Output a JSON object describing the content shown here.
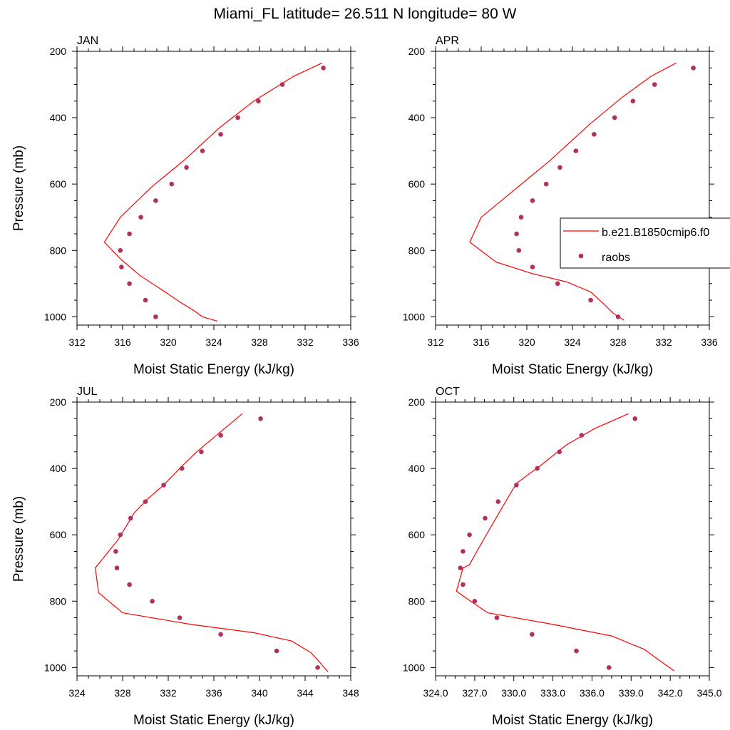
{
  "figure": {
    "title": "Miami_FL  latitude= 26.511 N longitude= 80 W"
  },
  "colors": {
    "model_line": "#ff0000",
    "raobs_marker": "#b03060",
    "axis": "#000000"
  },
  "legend": {
    "model_label": "b.e21.B1850cmip6.f0",
    "obs_label": "raobs",
    "placement": "right of APR panel"
  },
  "chart_data": [
    {
      "type": "line",
      "panel": "JAN",
      "xlabel": "Moist Static Energy (kJ/kg)",
      "ylabel": "Pressure (mb)",
      "xlim": [
        312,
        336
      ],
      "ylim": [
        200,
        1025
      ],
      "y_inverted": true,
      "xticks": [
        "312",
        "316",
        "320",
        "324",
        "328",
        "332",
        "336"
      ],
      "yticks": [
        "200",
        "400",
        "600",
        "800",
        "1000"
      ],
      "series": [
        {
          "name": "b.e21.B1850cmip6.f0",
          "style": "line",
          "x": [
            333.5,
            331.0,
            327.5,
            324.5,
            321.5,
            318.5,
            315.8,
            314.4,
            315.8,
            317.5,
            319.5,
            321.0,
            322.2,
            323.0,
            324.3
          ],
          "y": [
            235,
            275,
            350,
            430,
            525,
            610,
            700,
            775,
            825,
            875,
            920,
            955,
            980,
            1000,
            1013
          ]
        },
        {
          "name": "raobs",
          "style": "markers",
          "x": [
            333.6,
            330.0,
            327.9,
            326.1,
            324.6,
            323.0,
            321.6,
            320.3,
            318.9,
            317.6,
            316.6,
            315.8,
            315.9,
            316.6,
            318.0,
            318.9
          ],
          "y": [
            250,
            300,
            350,
            400,
            450,
            500,
            550,
            600,
            650,
            700,
            750,
            800,
            850,
            900,
            950,
            1000
          ]
        }
      ]
    },
    {
      "type": "line",
      "panel": "APR",
      "xlabel": "Moist Static Energy (kJ/kg)",
      "ylabel": "",
      "xlim": [
        312,
        336
      ],
      "ylim": [
        200,
        1025
      ],
      "y_inverted": true,
      "xticks": [
        "312",
        "316",
        "320",
        "324",
        "328",
        "332",
        "336"
      ],
      "yticks": [
        "200",
        "400",
        "600",
        "800",
        "1000"
      ],
      "series": [
        {
          "name": "b.e21.B1850cmip6.f0",
          "style": "line",
          "x": [
            333.1,
            330.9,
            328.3,
            325.5,
            322.0,
            319.0,
            316.0,
            315.0,
            317.3,
            320.5,
            323.5,
            325.6,
            326.7,
            327.6,
            328.5
          ],
          "y": [
            235,
            275,
            340,
            420,
            530,
            615,
            700,
            775,
            835,
            870,
            895,
            925,
            960,
            990,
            1010
          ]
        },
        {
          "name": "raobs",
          "style": "markers",
          "x": [
            334.6,
            331.2,
            329.3,
            327.7,
            325.9,
            324.3,
            322.9,
            321.7,
            320.5,
            319.5,
            319.1,
            319.3,
            320.5,
            322.7,
            325.6,
            328.0
          ],
          "y": [
            250,
            300,
            350,
            400,
            450,
            500,
            550,
            600,
            650,
            700,
            750,
            800,
            850,
            900,
            950,
            1000
          ]
        }
      ]
    },
    {
      "type": "line",
      "panel": "JUL",
      "xlabel": "Moist Static Energy (kJ/kg)",
      "ylabel": "Pressure (mb)",
      "xlim": [
        324,
        348
      ],
      "ylim": [
        200,
        1025
      ],
      "y_inverted": true,
      "xticks": [
        "324",
        "328",
        "332",
        "336",
        "340",
        "344",
        "348"
      ],
      "yticks": [
        "200",
        "400",
        "600",
        "800",
        "1000"
      ],
      "series": [
        {
          "name": "b.e21.B1850cmip6.f0",
          "style": "line",
          "x": [
            338.5,
            336.4,
            334.5,
            333.0,
            331.6,
            330.1,
            329.0,
            327.6,
            325.6,
            325.9,
            328.0,
            334.0,
            339.5,
            342.8,
            344.5,
            345.3,
            346.0
          ],
          "y": [
            235,
            295,
            350,
            400,
            450,
            495,
            535,
            615,
            700,
            775,
            835,
            870,
            895,
            920,
            955,
            985,
            1013
          ]
        },
        {
          "name": "raobs",
          "style": "markers",
          "x": [
            340.1,
            336.6,
            334.9,
            333.2,
            331.6,
            330.0,
            328.7,
            327.8,
            327.4,
            327.5,
            328.6,
            330.6,
            333.0,
            336.6,
            341.5,
            345.1
          ],
          "y": [
            250,
            300,
            350,
            400,
            450,
            500,
            550,
            600,
            650,
            700,
            750,
            800,
            850,
            900,
            950,
            1000
          ]
        }
      ]
    },
    {
      "type": "line",
      "panel": "OCT",
      "xlabel": "Moist Static Energy (kJ/kg)",
      "ylabel": "",
      "xlim": [
        324,
        345
      ],
      "ylim": [
        200,
        1025
      ],
      "y_inverted": true,
      "xticks": [
        "324.0",
        "327.0",
        "330.0",
        "333.0",
        "336.0",
        "339.0",
        "342.0",
        "345.0"
      ],
      "yticks": [
        "200",
        "400",
        "600",
        "800",
        "1000"
      ],
      "series": [
        {
          "name": "b.e21.B1850cmip6.f0",
          "style": "line",
          "x": [
            338.8,
            336.2,
            334.0,
            332.1,
            330.2,
            329.0,
            327.6,
            326.6,
            326.1,
            325.6,
            326.5,
            328.0,
            333.0,
            337.5,
            340.0,
            341.4,
            342.3
          ],
          "y": [
            235,
            280,
            330,
            390,
            445,
            525,
            620,
            690,
            700,
            770,
            795,
            835,
            870,
            905,
            945,
            985,
            1010
          ]
        },
        {
          "name": "raobs",
          "style": "markers",
          "x": [
            339.3,
            335.2,
            333.5,
            331.8,
            330.2,
            328.8,
            327.8,
            326.6,
            326.1,
            325.9,
            326.1,
            327.0,
            328.7,
            331.4,
            334.8,
            337.3
          ],
          "y": [
            250,
            300,
            350,
            400,
            450,
            500,
            550,
            600,
            650,
            700,
            750,
            800,
            850,
            900,
            950,
            1000
          ]
        }
      ]
    }
  ]
}
